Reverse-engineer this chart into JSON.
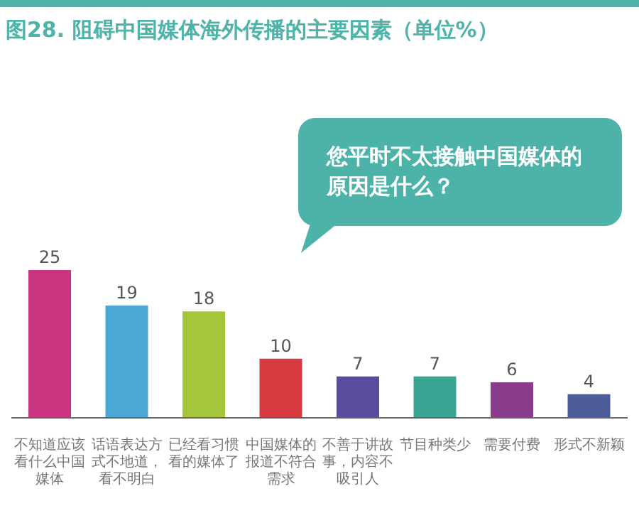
{
  "chart_data": {
    "type": "bar",
    "title": "图28. 阻碍中国媒体海外传播的主要因素（单位%）",
    "annotations": [
      "您平时不太接触中国媒体的原因是什么？"
    ],
    "categories": [
      "不知道应该看什么中国媒体",
      "话语表达方式不地道，看不明白",
      "已经看习惯看的媒体了",
      "中国媒体的报道不符合需求",
      "不善于讲故事，内容不吸引人",
      "节目种类少",
      "需要付费",
      "形式不新颖"
    ],
    "values": [
      25,
      19,
      18,
      10,
      7,
      7,
      6,
      4
    ],
    "colors": [
      "#c9357f",
      "#4ba7d6",
      "#a5c63b",
      "#d6393f",
      "#5b4c9c",
      "#3aa592",
      "#8b3b8c",
      "#4c5c9a"
    ],
    "data_labels": true,
    "grid": false,
    "legend": false
  }
}
